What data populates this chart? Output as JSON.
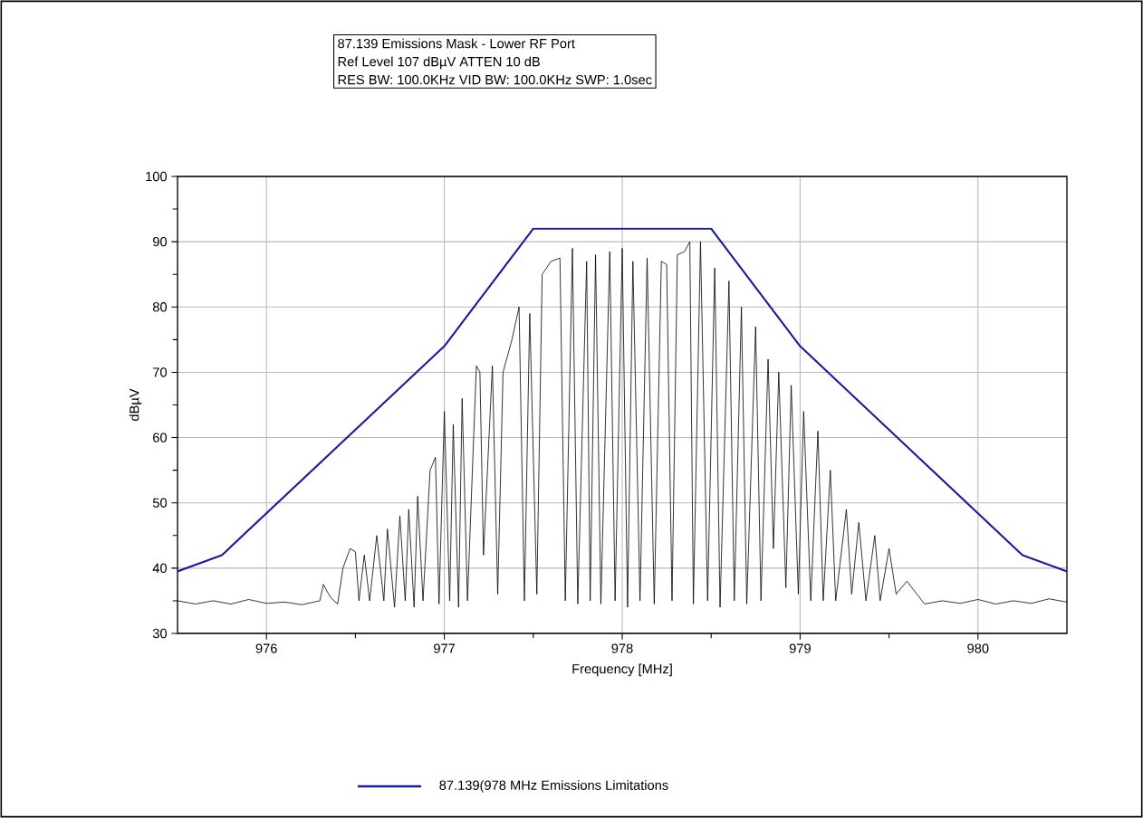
{
  "chart_data": {
    "type": "line",
    "title": "87.139 Emissions Mask - Lower RF Port",
    "subtitle": "Ref Level 107 dBµV    ATTEN 10 dB",
    "annotations": [
      "RES BW: 100.0KHz  VID BW: 100.0KHz  SWP: 1.0sec"
    ],
    "xlabel": "Frequency [MHz]",
    "ylabel": "dBµV",
    "xlim": [
      975.5,
      980.5
    ],
    "xticks": [
      976,
      977,
      978,
      979,
      980
    ],
    "ylim": [
      30,
      100
    ],
    "yticks": [
      30,
      40,
      50,
      60,
      70,
      80,
      90,
      100
    ],
    "grid": true,
    "legend": "bottom",
    "marker": "none",
    "line_style": "solid",
    "series": [
      {
        "name": "87.139(978 MHz Emissions Limitations",
        "color": "#1c1c9c",
        "x": [
          975.5,
          975.75,
          977,
          977.5,
          978.5,
          979,
          980.25,
          980.5
        ],
        "values": [
          39.5,
          42,
          74,
          92,
          92,
          74,
          42,
          39.5
        ]
      },
      {
        "color": "#000000",
        "x": [
          975.5,
          975.6,
          975.7,
          975.8,
          975.9,
          976.0,
          976.1,
          976.2,
          976.3,
          976.32,
          976.36,
          976.4,
          976.43,
          976.47,
          976.5,
          976.52,
          976.55,
          976.58,
          976.62,
          976.66,
          976.68,
          976.72,
          976.75,
          976.78,
          976.8,
          976.83,
          976.85,
          976.88,
          976.92,
          976.95,
          976.97,
          977.0,
          977.03,
          977.05,
          977.08,
          977.1,
          977.13,
          977.18,
          977.2,
          977.22,
          977.27,
          977.3,
          977.33,
          977.38,
          977.42,
          977.45,
          977.48,
          977.52,
          977.55,
          977.6,
          977.65,
          977.68,
          977.72,
          977.75,
          977.8,
          977.82,
          977.85,
          977.88,
          977.93,
          977.96,
          978.0,
          978.03,
          978.06,
          978.1,
          978.14,
          978.18,
          978.22,
          978.25,
          978.28,
          978.31,
          978.35,
          978.38,
          978.4,
          978.44,
          978.48,
          978.52,
          978.55,
          978.6,
          978.63,
          978.67,
          978.7,
          978.75,
          978.78,
          978.82,
          978.85,
          978.88,
          978.92,
          978.95,
          978.99,
          979.02,
          979.06,
          979.1,
          979.13,
          979.17,
          979.2,
          979.26,
          979.29,
          979.33,
          979.37,
          979.42,
          979.45,
          979.5,
          979.54,
          979.6,
          979.7,
          979.8,
          979.9,
          980.0,
          980.1,
          980.2,
          980.3,
          980.4,
          980.5
        ],
        "values": [
          35,
          34.5,
          35,
          34.5,
          35.2,
          34.6,
          34.8,
          34.4,
          35,
          37.5,
          35.5,
          34.5,
          40,
          43,
          42.5,
          35,
          42,
          35,
          45,
          35,
          46,
          34,
          48,
          35,
          49,
          34,
          51,
          35,
          55,
          57,
          34.5,
          64,
          35,
          62,
          34,
          66,
          35,
          71,
          70,
          42,
          71,
          36,
          70,
          75,
          80,
          35,
          79,
          36,
          85,
          87,
          87.5,
          35,
          89,
          34.5,
          87,
          35,
          88,
          34.5,
          88.5,
          35,
          89,
          34,
          87,
          35,
          87.5,
          34.5,
          87,
          86.5,
          35,
          88,
          88.5,
          90,
          34.5,
          90,
          35,
          86,
          34,
          84,
          35,
          80,
          34.5,
          77,
          35,
          72,
          43,
          70,
          37,
          68,
          36,
          64,
          35,
          61,
          35,
          55,
          35,
          49,
          36,
          47,
          35,
          45,
          35,
          43,
          36,
          38,
          34.5,
          35,
          34.6,
          35.2,
          34.5,
          35,
          34.6,
          35.3,
          34.8
        ]
      }
    ]
  }
}
